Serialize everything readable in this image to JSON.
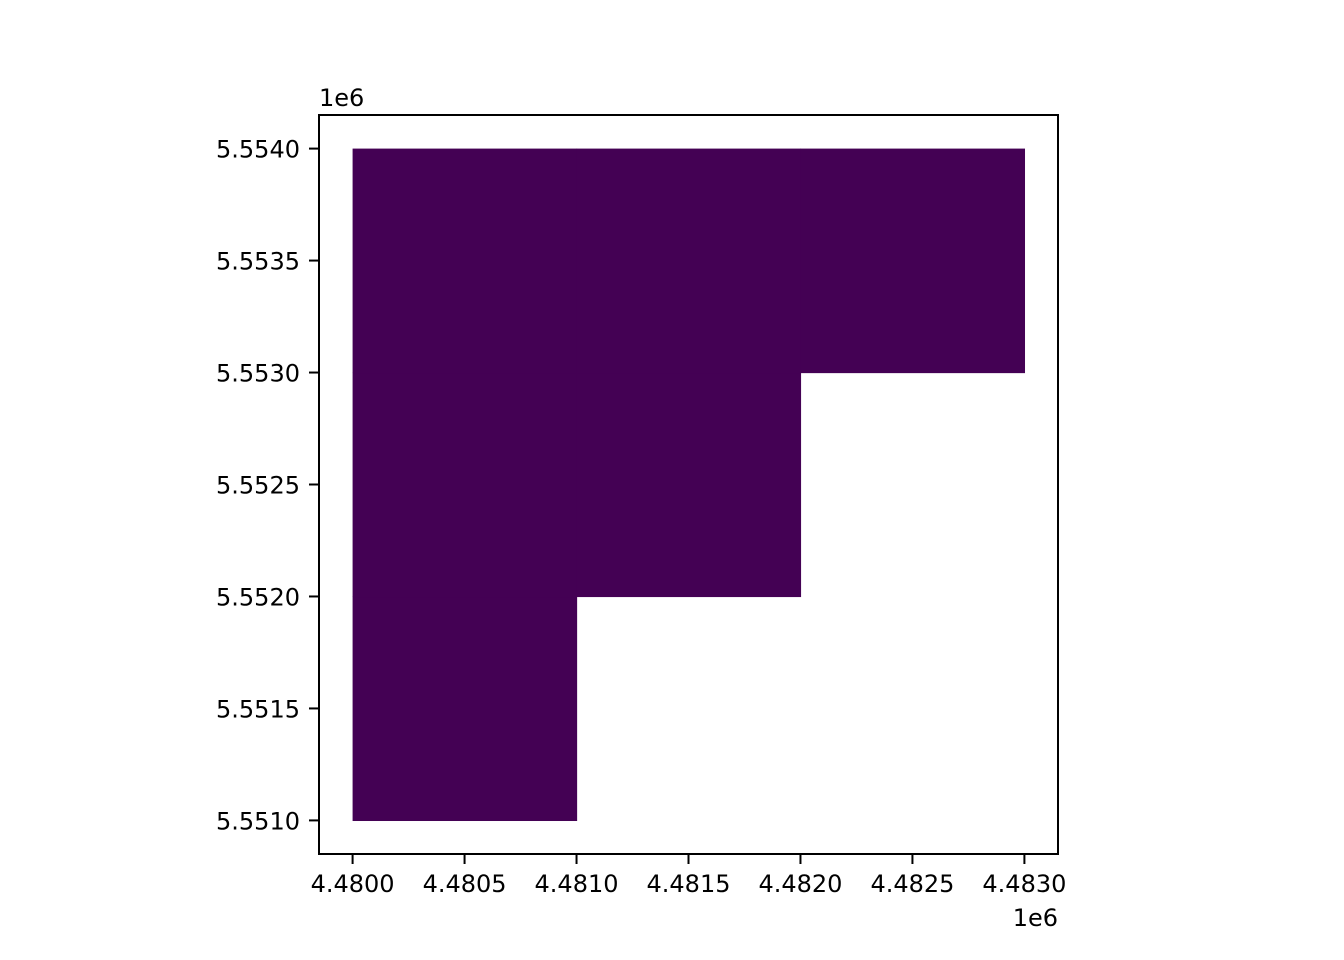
{
  "chart_data": {
    "type": "heatmap",
    "title": "",
    "xlabel": "",
    "ylabel": "",
    "x_offset_label": "1e6",
    "y_offset_label": "1e6",
    "xlim": [
      4.47985,
      4.48315
    ],
    "ylim": [
      5.55085,
      5.55415
    ],
    "x_ticks": [
      4.48,
      4.4805,
      4.481,
      4.4815,
      4.482,
      4.4825,
      4.483
    ],
    "x_tick_labels": [
      "4.4800",
      "4.4805",
      "4.4810",
      "4.4815",
      "4.4820",
      "4.4825",
      "4.4830"
    ],
    "y_ticks": [
      5.551,
      5.5515,
      5.552,
      5.5525,
      5.553,
      5.5535,
      5.554
    ],
    "y_tick_labels": [
      "5.5510",
      "5.5515",
      "5.5520",
      "5.5525",
      "5.5530",
      "5.5535",
      "5.5540"
    ],
    "grid": false,
    "legend": "none",
    "fill_color": "#440154",
    "cells": [
      {
        "x": [
          4.48,
          4.481
        ],
        "y": [
          5.551,
          5.552
        ]
      },
      {
        "x": [
          4.48,
          4.481
        ],
        "y": [
          5.552,
          5.553
        ]
      },
      {
        "x": [
          4.481,
          4.482
        ],
        "y": [
          5.552,
          5.553
        ]
      },
      {
        "x": [
          4.48,
          4.481
        ],
        "y": [
          5.553,
          5.554
        ]
      },
      {
        "x": [
          4.481,
          4.482
        ],
        "y": [
          5.553,
          5.554
        ]
      },
      {
        "x": [
          4.482,
          4.483
        ],
        "y": [
          5.553,
          5.554
        ]
      }
    ]
  }
}
